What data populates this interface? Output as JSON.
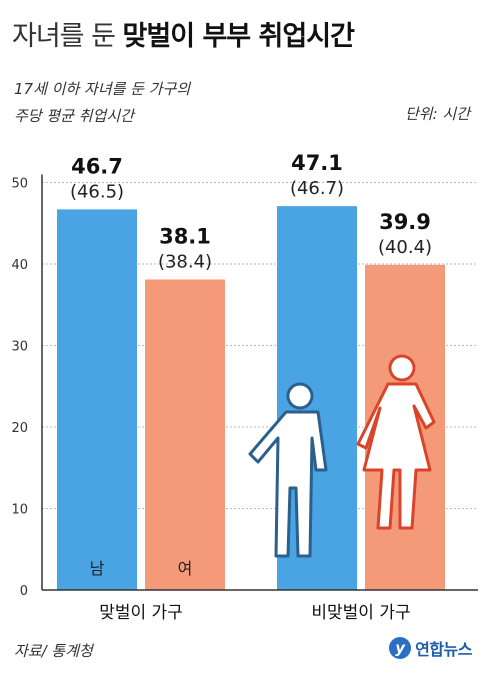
{
  "title_light": "자녀를 둔",
  "title_bold": "맞벌이 부부 취업시간",
  "subtitle_line1": "17세 이하 자녀를 둔 가구의",
  "subtitle_line2": "주당 평균 취업시간",
  "unit_label": "단위: 시간",
  "source": "자료/ 통계청",
  "logo_mark": "y",
  "logo_text": "연합뉴스",
  "colors": {
    "male": "#4aa3e2",
    "female": "#f59a78",
    "axis": "#333333",
    "grid": "#bbbbbb"
  },
  "icons": [
    "male-figure-icon",
    "female-figure-icon"
  ],
  "chart_data": {
    "type": "bar",
    "categories": [
      "맞벌이 가구",
      "비맞벌이 가구"
    ],
    "series": [
      {
        "name": "남",
        "values": [
          46.7,
          47.1
        ],
        "previous_labels": [
          "(46.5)",
          "(46.7)"
        ]
      },
      {
        "name": "여",
        "values": [
          38.1,
          39.9
        ],
        "previous_labels": [
          "(38.4)",
          "(40.4)"
        ]
      }
    ],
    "yticks": [
      0,
      10,
      20,
      30,
      40,
      50
    ],
    "ylim": [
      0,
      50
    ],
    "grid": true,
    "legend": "inside-bars"
  }
}
